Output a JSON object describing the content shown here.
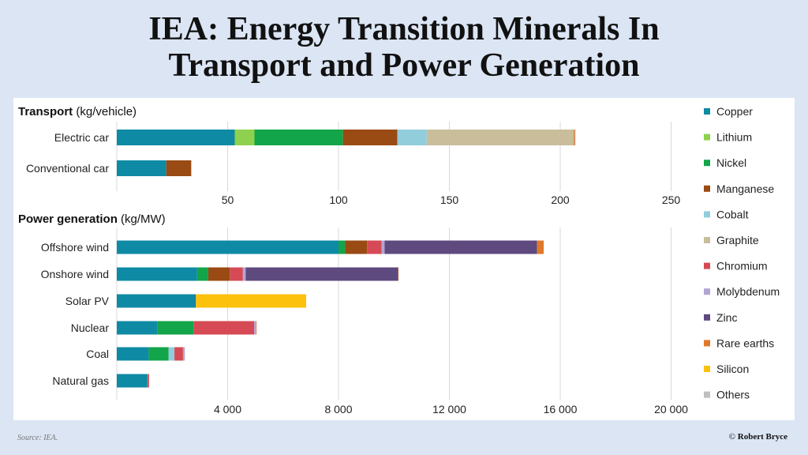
{
  "title_line1": "IEA: Energy Transition Minerals In",
  "title_line2": "Transport and Power Generation",
  "source": "Source: IEA.",
  "credit_symbol": "©",
  "credit": "Robert Bryce",
  "minerals": [
    {
      "name": "Copper",
      "color": "#0f8aa4"
    },
    {
      "name": "Lithium",
      "color": "#8dd14e"
    },
    {
      "name": "Nickel",
      "color": "#12a54a"
    },
    {
      "name": "Manganese",
      "color": "#9a4a13"
    },
    {
      "name": "Cobalt",
      "color": "#92cddc"
    },
    {
      "name": "Graphite",
      "color": "#c9bd9b"
    },
    {
      "name": "Chromium",
      "color": "#d64a55"
    },
    {
      "name": "Molybdenum",
      "color": "#b3a5d3"
    },
    {
      "name": "Zinc",
      "color": "#5e4a7e"
    },
    {
      "name": "Rare earths",
      "color": "#e0782a"
    },
    {
      "name": "Silicon",
      "color": "#fcc10d"
    },
    {
      "name": "Others",
      "color": "#bfbfbf"
    }
  ],
  "chart_data": [
    {
      "type": "bar",
      "orientation": "horizontal",
      "stacked": true,
      "title_bold": "Transport",
      "title_unit": "(kg/vehicle)",
      "categories": [
        "Electric car",
        "Conventional car"
      ],
      "xticks": [
        "50",
        "100",
        "150",
        "200",
        "250"
      ],
      "xtick_values": [
        50,
        100,
        150,
        200,
        250
      ],
      "xlim": [
        0,
        260
      ],
      "series": [
        {
          "name": "Copper",
          "values": [
            53.2,
            22.3
          ]
        },
        {
          "name": "Lithium",
          "values": [
            8.9,
            0
          ]
        },
        {
          "name": "Nickel",
          "values": [
            39.9,
            0
          ]
        },
        {
          "name": "Manganese",
          "values": [
            24.5,
            11.2
          ]
        },
        {
          "name": "Cobalt",
          "values": [
            13.3,
            0
          ]
        },
        {
          "name": "Graphite",
          "values": [
            66.3,
            0
          ]
        },
        {
          "name": "Chromium",
          "values": [
            0,
            0
          ]
        },
        {
          "name": "Molybdenum",
          "values": [
            0,
            0
          ]
        },
        {
          "name": "Zinc",
          "values": [
            0,
            0
          ]
        },
        {
          "name": "Rare earths",
          "values": [
            0.5,
            0
          ]
        },
        {
          "name": "Silicon",
          "values": [
            0,
            0
          ]
        },
        {
          "name": "Others",
          "values": [
            0.3,
            0.3
          ]
        }
      ]
    },
    {
      "type": "bar",
      "orientation": "horizontal",
      "stacked": true,
      "title_bold": "Power generation",
      "title_unit": "(kg/MW)",
      "categories": [
        "Offshore wind",
        "Onshore wind",
        "Solar PV",
        "Nuclear",
        "Coal",
        "Natural gas"
      ],
      "xticks": [
        "4 000",
        "8 000",
        "12 000",
        "16 000",
        "20 000"
      ],
      "xtick_values": [
        4000,
        8000,
        12000,
        16000,
        20000
      ],
      "xlim": [
        0,
        20800
      ],
      "series": [
        {
          "name": "Copper",
          "values": [
            8000,
            2900,
            2822,
            1473,
            1150,
            1100
          ]
        },
        {
          "name": "Lithium",
          "values": [
            0,
            0,
            0,
            0,
            0,
            0
          ]
        },
        {
          "name": "Nickel",
          "values": [
            240,
            400,
            1,
            1297,
            721,
            16
          ]
        },
        {
          "name": "Manganese",
          "values": [
            790,
            780,
            0,
            0,
            0,
            0
          ]
        },
        {
          "name": "Cobalt",
          "values": [
            0,
            0,
            0,
            0,
            210,
            0
          ]
        },
        {
          "name": "Graphite",
          "values": [
            0,
            0,
            0,
            0,
            0,
            0
          ]
        },
        {
          "name": "Chromium",
          "values": [
            525,
            470,
            0,
            2190,
            308,
            48
          ]
        },
        {
          "name": "Molybdenum",
          "values": [
            109,
            99,
            0,
            70,
            66,
            0
          ]
        },
        {
          "name": "Zinc",
          "values": [
            5500,
            5500,
            30,
            0,
            0,
            0
          ]
        },
        {
          "name": "Rare earths",
          "values": [
            239,
            14,
            0,
            0.5,
            0,
            0
          ]
        },
        {
          "name": "Silicon",
          "values": [
            0,
            0,
            3980,
            0,
            0,
            0
          ]
        },
        {
          "name": "Others",
          "values": [
            0,
            0,
            0,
            0,
            0,
            0
          ]
        }
      ]
    }
  ]
}
